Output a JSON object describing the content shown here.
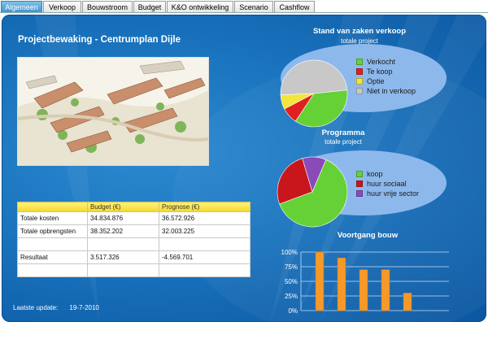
{
  "tabs": [
    {
      "label": "Algemeen",
      "active": true
    },
    {
      "label": "Verkoop",
      "active": false
    },
    {
      "label": "Bouwstroom",
      "active": false
    },
    {
      "label": "Budget",
      "active": false
    },
    {
      "label": "K&O ontwikkeling",
      "active": false
    },
    {
      "label": "Scenario",
      "active": false
    },
    {
      "label": "Cashflow",
      "active": false
    }
  ],
  "page_title": "Projectbewaking - Centrumplan Dijle",
  "table": {
    "headers": [
      "",
      "Budget (€)",
      "Prognose (€)"
    ],
    "rows": [
      [
        "Totale kosten",
        "34.834.876",
        "36.572.926"
      ],
      [
        "Totale opbrengsten",
        "38.352.202",
        "32.003.225"
      ],
      [
        "",
        "",
        ""
      ],
      [
        "Resultaat",
        "3.517.326",
        "-4.569.701"
      ],
      [
        "",
        "",
        ""
      ]
    ]
  },
  "footer": {
    "label": "Laatste update:",
    "date": "19-7-2010"
  },
  "colors": {
    "green": "#66d136",
    "red": "#e02020",
    "yellow": "#f2e53b",
    "gray": "#c8c8c8",
    "darkred": "#c8161c",
    "purple": "#8a4bb8",
    "orange": "#f59a2a",
    "ellipse": "#8db8ec"
  },
  "chart_data": [
    {
      "type": "pie",
      "title": "Stand van zaken verkoop",
      "subtitle": "totale project",
      "categories": [
        "Verkocht",
        "Te koop",
        "Optie",
        "Niet in verkoop"
      ],
      "values": [
        36,
        8,
        7,
        49
      ],
      "colors": [
        "#66d136",
        "#e02020",
        "#f2e53b",
        "#c8c8c8"
      ]
    },
    {
      "type": "pie",
      "title": "Programma",
      "subtitle": "totale project",
      "categories": [
        "koop",
        "huur sociaal",
        "huur vrije sector"
      ],
      "values": [
        63,
        26,
        11
      ],
      "colors": [
        "#66d136",
        "#c8161c",
        "#8a4bb8"
      ]
    },
    {
      "type": "bar",
      "title": "Voortgang bouw",
      "values": [
        100,
        90,
        70,
        70,
        30
      ],
      "ylim": [
        0,
        100
      ],
      "yticks": [
        "0%",
        "25%",
        "50%",
        "75%",
        "100%"
      ],
      "grid": true
    }
  ]
}
